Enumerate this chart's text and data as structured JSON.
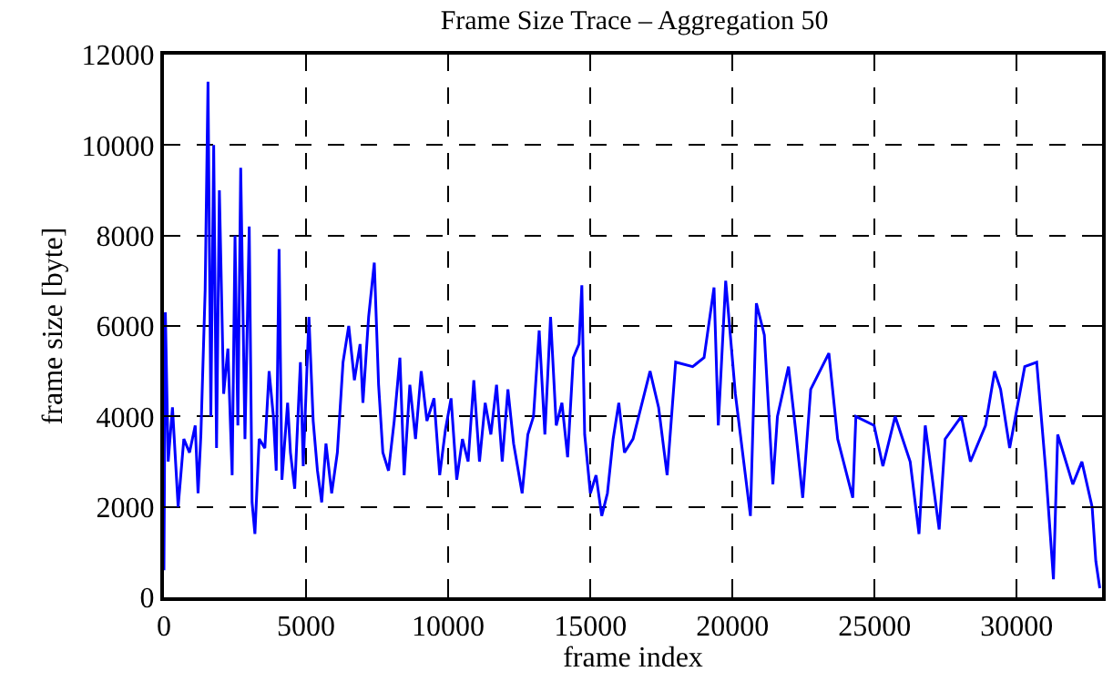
{
  "chart_data": {
    "type": "line",
    "title": "Frame Size Trace – Aggregation 50",
    "xlabel": "frame index",
    "ylabel": "frame size [byte]",
    "xlim": [
      0,
      33000
    ],
    "ylim": [
      0,
      12000
    ],
    "xticks": [
      0,
      5000,
      10000,
      15000,
      20000,
      25000,
      30000
    ],
    "yticks": [
      0,
      2000,
      4000,
      6000,
      8000,
      10000,
      12000
    ],
    "grid": true,
    "line_style": "solid",
    "marker": "none",
    "series": [
      {
        "color": "#0000ff",
        "x": [
          0,
          50,
          150,
          300,
          500,
          700,
          900,
          1100,
          1200,
          1300,
          1450,
          1550,
          1650,
          1750,
          1850,
          1950,
          2100,
          2250,
          2400,
          2500,
          2600,
          2700,
          2850,
          3000,
          3100,
          3200,
          3350,
          3550,
          3700,
          3850,
          3950,
          4050,
          4150,
          4350,
          4450,
          4600,
          4800,
          4900,
          5100,
          5250,
          5400,
          5550,
          5700,
          5900,
          6100,
          6300,
          6500,
          6700,
          6900,
          7000,
          7200,
          7400,
          7550,
          7700,
          7900,
          8100,
          8300,
          8450,
          8650,
          8850,
          9050,
          9250,
          9500,
          9700,
          9900,
          10100,
          10300,
          10500,
          10700,
          10900,
          11100,
          11300,
          11500,
          11700,
          11900,
          12100,
          12300,
          12600,
          12800,
          13000,
          13200,
          13400,
          13600,
          13800,
          14000,
          14200,
          14400,
          14600,
          14700,
          14800,
          15000,
          15200,
          15400,
          15600,
          15800,
          16000,
          16200,
          16500,
          17100,
          17400,
          17700,
          18000,
          18600,
          19000,
          19350,
          19500,
          19760,
          20100,
          20630,
          20840,
          21120,
          21420,
          21580,
          21970,
          22220,
          22470,
          22750,
          23390,
          23700,
          24230,
          24340,
          24980,
          25290,
          25720,
          26250,
          26560,
          26780,
          27270,
          27480,
          28050,
          28370,
          28900,
          29220,
          29430,
          29750,
          30280,
          30700,
          31020,
          31290,
          31440,
          31970,
          32290,
          32650,
          32780,
          32920
        ],
        "values": [
          600,
          6300,
          3000,
          4200,
          2000,
          3500,
          3200,
          3800,
          2300,
          3600,
          6800,
          11400,
          4000,
          10000,
          3300,
          9000,
          4500,
          5500,
          2700,
          8000,
          3800,
          9500,
          3500,
          8200,
          2100,
          1400,
          3500,
          3300,
          5000,
          4000,
          2800,
          7700,
          2600,
          4300,
          3200,
          2400,
          5200,
          2900,
          6200,
          3900,
          2800,
          2100,
          3400,
          2300,
          3200,
          5200,
          6000,
          4800,
          5600,
          4300,
          6200,
          7400,
          4700,
          3200,
          2800,
          3900,
          5300,
          2700,
          4700,
          3500,
          5000,
          3900,
          4400,
          2700,
          3700,
          4400,
          2600,
          3500,
          3000,
          4800,
          3000,
          4300,
          3600,
          4700,
          3000,
          4600,
          3400,
          2300,
          3600,
          4000,
          5900,
          3600,
          6200,
          3800,
          4300,
          3100,
          5300,
          5600,
          6900,
          3600,
          2300,
          2700,
          1800,
          2300,
          3500,
          4300,
          3200,
          3500,
          5000,
          4200,
          2700,
          5200,
          5100,
          5300,
          6850,
          3800,
          7000,
          4500,
          1800,
          6500,
          5800,
          2500,
          4000,
          5100,
          3700,
          2200,
          4600,
          5400,
          3500,
          2200,
          4000,
          3800,
          2900,
          4000,
          3000,
          1400,
          3800,
          1500,
          3500,
          4000,
          3000,
          3800,
          5000,
          4600,
          3300,
          5100,
          5200,
          2800,
          400,
          3600,
          2500,
          3000,
          2000,
          800,
          200
        ]
      }
    ]
  }
}
